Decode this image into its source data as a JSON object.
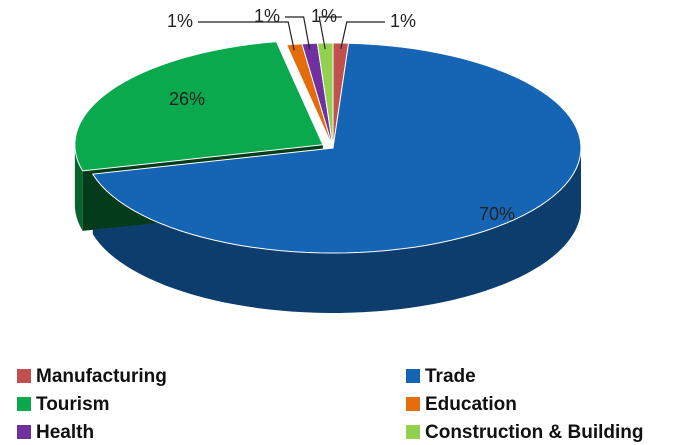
{
  "chart_data": {
    "type": "pie",
    "categories": [
      "Manufacturing",
      "Trade",
      "Tourism",
      "Education",
      "Health",
      "Construction & Building"
    ],
    "values": [
      1,
      70,
      26,
      1,
      1,
      1
    ],
    "value_labels": [
      "1%",
      "70%",
      "26%",
      "1%",
      "1%",
      "1%"
    ],
    "colors": [
      "#c0504d",
      "#1565b4",
      "#0aa94e",
      "#e46c0a",
      "#7030a0",
      "#92d050"
    ],
    "legend": "bottom"
  }
}
